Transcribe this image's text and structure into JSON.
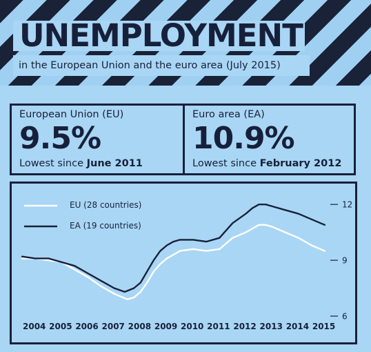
{
  "header": {
    "title": "UNEMPLOYMENT",
    "subtitle": "in the European Union and the euro area (July 2015)"
  },
  "stats": {
    "eu": {
      "name": "European Union (EU)",
      "value": "9.5%",
      "note_prefix": "Lowest since ",
      "note_highlight": "June 2011"
    },
    "ea": {
      "name": "Euro area (EA)",
      "value": "10.9%",
      "note_prefix": "Lowest since ",
      "note_highlight": "February 2012"
    }
  },
  "colors": {
    "background": "#a9d6f5",
    "dark": "#17203a",
    "eu_line": "#ffffff",
    "ea_line": "#17203a"
  },
  "chart_data": {
    "type": "line",
    "x_ticks": [
      "2004",
      "2005",
      "2006",
      "2007",
      "2008",
      "2009",
      "2010",
      "2011",
      "2012",
      "2013",
      "2014",
      "2015"
    ],
    "y_ticks": [
      6,
      9,
      12
    ],
    "ylim": [
      6,
      12.6
    ],
    "xlim": [
      2004.0,
      2015.58
    ],
    "legend_position": "top-left",
    "series": [
      {
        "name": "EU (28 countries)",
        "color": "#ffffff",
        "points": [
          [
            2004.0,
            9.1
          ],
          [
            2004.5,
            9.1
          ],
          [
            2005.0,
            9.0
          ],
          [
            2005.5,
            8.9
          ],
          [
            2006.0,
            8.5
          ],
          [
            2006.5,
            8.1
          ],
          [
            2007.0,
            7.6
          ],
          [
            2007.5,
            7.2
          ],
          [
            2008.0,
            6.9
          ],
          [
            2008.25,
            7.0
          ],
          [
            2008.5,
            7.3
          ],
          [
            2008.75,
            7.8
          ],
          [
            2009.0,
            8.4
          ],
          [
            2009.25,
            8.8
          ],
          [
            2009.5,
            9.1
          ],
          [
            2009.75,
            9.3
          ],
          [
            2010.0,
            9.5
          ],
          [
            2010.5,
            9.6
          ],
          [
            2011.0,
            9.5
          ],
          [
            2011.5,
            9.6
          ],
          [
            2011.75,
            9.9
          ],
          [
            2012.0,
            10.2
          ],
          [
            2012.5,
            10.5
          ],
          [
            2012.75,
            10.7
          ],
          [
            2013.0,
            10.9
          ],
          [
            2013.25,
            10.9
          ],
          [
            2013.5,
            10.8
          ],
          [
            2014.0,
            10.5
          ],
          [
            2014.5,
            10.2
          ],
          [
            2015.0,
            9.8
          ],
          [
            2015.33,
            9.6
          ],
          [
            2015.5,
            9.5
          ]
        ]
      },
      {
        "name": "EA (19 countries)",
        "color": "#17203a",
        "points": [
          [
            2004.0,
            9.2
          ],
          [
            2004.5,
            9.1
          ],
          [
            2005.0,
            9.1
          ],
          [
            2005.5,
            8.9
          ],
          [
            2006.0,
            8.7
          ],
          [
            2006.5,
            8.3
          ],
          [
            2007.0,
            7.9
          ],
          [
            2007.5,
            7.5
          ],
          [
            2007.9,
            7.3
          ],
          [
            2008.25,
            7.5
          ],
          [
            2008.5,
            7.8
          ],
          [
            2008.75,
            8.4
          ],
          [
            2009.0,
            9.0
          ],
          [
            2009.25,
            9.5
          ],
          [
            2009.5,
            9.8
          ],
          [
            2009.75,
            10.0
          ],
          [
            2010.0,
            10.1
          ],
          [
            2010.5,
            10.1
          ],
          [
            2011.0,
            10.0
          ],
          [
            2011.5,
            10.2
          ],
          [
            2011.75,
            10.6
          ],
          [
            2012.0,
            11.0
          ],
          [
            2012.5,
            11.5
          ],
          [
            2012.75,
            11.8
          ],
          [
            2013.0,
            12.0
          ],
          [
            2013.25,
            12.0
          ],
          [
            2013.5,
            11.9
          ],
          [
            2014.0,
            11.7
          ],
          [
            2014.5,
            11.5
          ],
          [
            2015.0,
            11.2
          ],
          [
            2015.33,
            11.0
          ],
          [
            2015.5,
            10.9
          ]
        ]
      }
    ]
  }
}
